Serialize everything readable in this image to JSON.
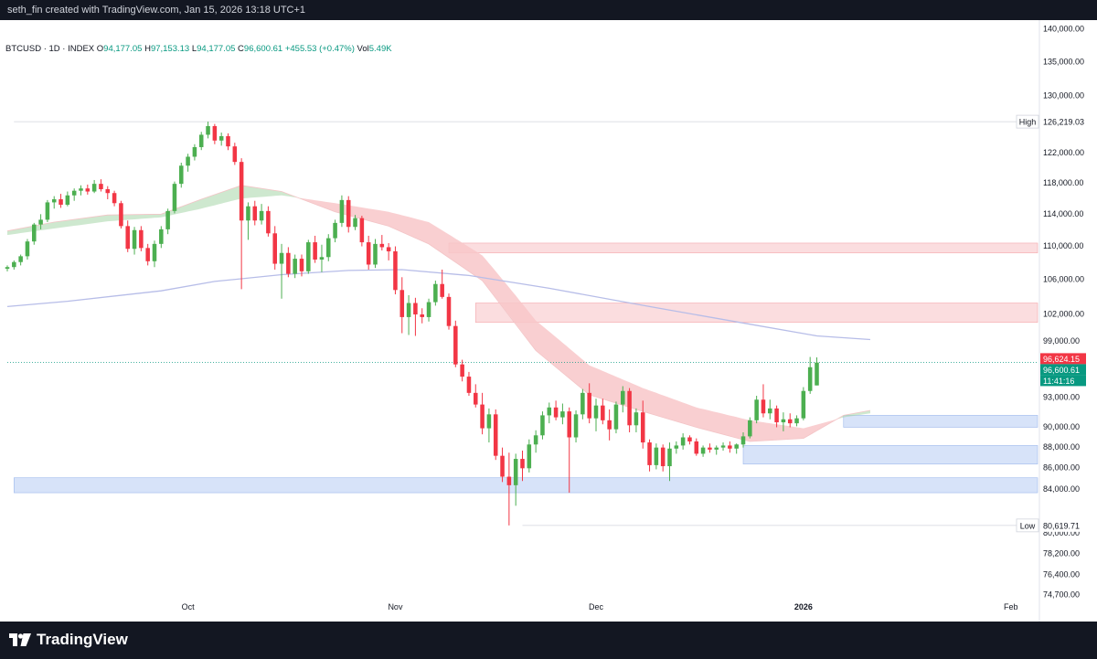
{
  "header": {
    "credit": "seth_fin created with TradingView.com, Jan 15, 2026 13:18 UTC+1"
  },
  "legend": {
    "symbol": "BTCUSD · 1D · INDEX",
    "o_label": "O",
    "o_value": "94,177.05",
    "h_label": "H",
    "h_value": "97,153.13",
    "l_label": "L",
    "l_value": "94,177.05",
    "c_label": "C",
    "c_value": "96,600.61",
    "change": "+455.53 (+0.47%)",
    "vol_label": "Vol",
    "vol_value": "5.49K"
  },
  "footer": {
    "brand": "TradingView"
  },
  "colors": {
    "up": "#26a69a",
    "up_candle": "#4caf50",
    "down": "#f23645",
    "zone_red": "#f8c7c9",
    "zone_blue": "#bcd0f5",
    "ma_line": "#b7bde8"
  },
  "chart_data": {
    "type": "candlestick",
    "symbol": "BTCUSD",
    "interval": "1D",
    "y_axis": {
      "scale": "log",
      "ticks": [
        "140,000.00",
        "135,000.00",
        "130,000.00",
        "126,000.00",
        "122,000.00",
        "118,000.00",
        "114,000.00",
        "110,000.00",
        "106,000.00",
        "102,000.00",
        "99,000.00",
        "93,000.00",
        "90,000.00",
        "88,000.00",
        "86,000.00",
        "84,000.00",
        "80,000.00",
        "78,200.00",
        "76,400.00",
        "74,700.00"
      ],
      "tick_values": [
        140000,
        135000,
        130000,
        126000,
        122000,
        118000,
        114000,
        110000,
        106000,
        102000,
        99000,
        93000,
        90000,
        88000,
        86000,
        84000,
        80000,
        78200,
        76400,
        74700
      ]
    },
    "x_axis": {
      "labels": [
        "Oct",
        "Nov",
        "Dec",
        "2026",
        "Feb"
      ],
      "label_days": [
        26,
        57,
        87,
        118,
        149
      ]
    },
    "high_marker": {
      "label": "High",
      "value": "126,219.03",
      "price": 126219.03,
      "start_day": 0
    },
    "low_marker": {
      "label": "Low",
      "value": "80,619.71",
      "price": 80619.71,
      "start_day": 76
    },
    "price_labels": [
      {
        "text": "96,624.15",
        "price": 96624.15,
        "color": "#f23645"
      },
      {
        "text": "96,600.61",
        "price": 96600.61,
        "color": "#089981"
      },
      {
        "text": "11:41:16",
        "price": 95350,
        "color": "#089981"
      }
    ],
    "last_price": 96600.61,
    "zones": [
      {
        "kind": "red",
        "top": 110300,
        "bottom": 109100,
        "start_day": 65
      },
      {
        "kind": "red",
        "top": 103200,
        "bottom": 101000,
        "start_day": 69
      },
      {
        "kind": "blue",
        "top": 91100,
        "bottom": 89900,
        "start_day": 124
      },
      {
        "kind": "blue",
        "top": 88100,
        "bottom": 86300,
        "start_day": 109
      },
      {
        "kind": "blue",
        "top": 85000,
        "bottom": 83600,
        "start_day": 0
      }
    ],
    "start_day": -1,
    "candles": [
      [
        107200,
        107600,
        106900,
        107400
      ],
      [
        107400,
        108200,
        107100,
        108000
      ],
      [
        108000,
        108900,
        107600,
        108700
      ],
      [
        108700,
        110800,
        108300,
        110500
      ],
      [
        110500,
        112800,
        110100,
        112600
      ],
      [
        112600,
        113900,
        112000,
        113200
      ],
      [
        113200,
        115700,
        112900,
        115400
      ],
      [
        115400,
        116200,
        114600,
        115800
      ],
      [
        115800,
        116500,
        114700,
        115100
      ],
      [
        115100,
        116800,
        114900,
        116300
      ],
      [
        116300,
        117200,
        115600,
        116900
      ],
      [
        116900,
        117600,
        116300,
        117200
      ],
      [
        117200,
        117700,
        116400,
        116800
      ],
      [
        116800,
        118300,
        116600,
        117800
      ],
      [
        117800,
        118400,
        116800,
        117100
      ],
      [
        117100,
        117500,
        115800,
        116600
      ],
      [
        116600,
        116900,
        114900,
        115300
      ],
      [
        115300,
        115600,
        112100,
        112400
      ],
      [
        112400,
        113100,
        109200,
        109600
      ],
      [
        109600,
        112300,
        108900,
        111900
      ],
      [
        111900,
        112400,
        109300,
        109700
      ],
      [
        109700,
        110200,
        107600,
        108100
      ],
      [
        108100,
        110600,
        107400,
        110200
      ],
      [
        110200,
        112400,
        109700,
        112000
      ],
      [
        112000,
        114600,
        111400,
        114300
      ],
      [
        114300,
        118100,
        114000,
        117800
      ],
      [
        117800,
        120600,
        117300,
        120200
      ],
      [
        120200,
        121800,
        119400,
        121400
      ],
      [
        121400,
        123100,
        120900,
        122700
      ],
      [
        122700,
        124800,
        122300,
        124400
      ],
      [
        124400,
        126219,
        123900,
        125600
      ],
      [
        125600,
        125900,
        123100,
        123600
      ],
      [
        123600,
        124700,
        122900,
        124200
      ],
      [
        124200,
        124600,
        122300,
        122800
      ],
      [
        122800,
        123300,
        120300,
        120700
      ],
      [
        120700,
        121200,
        104800,
        113100
      ],
      [
        113100,
        115400,
        110700,
        114900
      ],
      [
        114900,
        115600,
        112500,
        113100
      ],
      [
        113100,
        115200,
        112600,
        114300
      ],
      [
        114300,
        114900,
        111100,
        111500
      ],
      [
        111500,
        112400,
        107100,
        107800
      ],
      [
        107800,
        110200,
        103700,
        109100
      ],
      [
        109100,
        109800,
        106200,
        106600
      ],
      [
        106600,
        108900,
        106100,
        108400
      ],
      [
        108400,
        108900,
        106300,
        106900
      ],
      [
        106900,
        110700,
        106600,
        110400
      ],
      [
        110400,
        111200,
        107900,
        108300
      ],
      [
        108300,
        110100,
        106800,
        108600
      ],
      [
        108600,
        111400,
        108100,
        110900
      ],
      [
        110900,
        113200,
        110400,
        112800
      ],
      [
        112800,
        116300,
        112300,
        115700
      ],
      [
        115700,
        116200,
        111600,
        112300
      ],
      [
        112300,
        113800,
        111900,
        113400
      ],
      [
        113400,
        113700,
        109900,
        110400
      ],
      [
        110400,
        111200,
        107100,
        107700
      ],
      [
        107700,
        110800,
        107300,
        110200
      ],
      [
        110200,
        111300,
        109400,
        109800
      ],
      [
        109800,
        110300,
        108200,
        109300
      ],
      [
        109300,
        109900,
        104200,
        104700
      ],
      [
        104700,
        106200,
        99800,
        101600
      ],
      [
        101600,
        104100,
        99600,
        103200
      ],
      [
        103200,
        103800,
        99500,
        101900
      ],
      [
        101900,
        102600,
        100900,
        101600
      ],
      [
        101600,
        103700,
        101100,
        103300
      ],
      [
        103300,
        105800,
        102900,
        105400
      ],
      [
        105400,
        107100,
        103700,
        103900
      ],
      [
        103900,
        104300,
        100200,
        100600
      ],
      [
        100600,
        101200,
        96100,
        96400
      ],
      [
        96400,
        96900,
        94600,
        95100
      ],
      [
        95100,
        95600,
        93100,
        93400
      ],
      [
        93400,
        94300,
        91900,
        92200
      ],
      [
        92200,
        93400,
        89200,
        89800
      ],
      [
        89800,
        91800,
        88400,
        91200
      ],
      [
        91200,
        91700,
        86700,
        87100
      ],
      [
        87100,
        87900,
        84600,
        85100
      ],
      [
        85100,
        87400,
        80619,
        84300
      ],
      [
        84300,
        87300,
        82400,
        86800
      ],
      [
        86800,
        87600,
        84700,
        85900
      ],
      [
        85900,
        88700,
        85500,
        88200
      ],
      [
        88200,
        89600,
        87400,
        89100
      ],
      [
        89100,
        91500,
        88700,
        91100
      ],
      [
        91100,
        92400,
        90300,
        91900
      ],
      [
        91900,
        92600,
        90600,
        90900
      ],
      [
        90900,
        92300,
        90200,
        91500
      ],
      [
        91500,
        91900,
        83600,
        88900
      ],
      [
        88900,
        91600,
        88400,
        91200
      ],
      [
        91200,
        93800,
        90700,
        93400
      ],
      [
        93400,
        94400,
        90300,
        90800
      ],
      [
        90800,
        92800,
        89500,
        92100
      ],
      [
        92100,
        92800,
        90200,
        90600
      ],
      [
        90600,
        91700,
        88600,
        89700
      ],
      [
        89700,
        92500,
        89300,
        92200
      ],
      [
        92200,
        94100,
        91400,
        93600
      ],
      [
        93600,
        93900,
        89400,
        90100
      ],
      [
        90100,
        91800,
        89400,
        91400
      ],
      [
        91400,
        92600,
        87800,
        88400
      ],
      [
        88400,
        88700,
        85600,
        86200
      ],
      [
        86200,
        88300,
        85800,
        87900
      ],
      [
        87900,
        88200,
        85600,
        86100
      ],
      [
        86100,
        88400,
        84700,
        87800
      ],
      [
        87800,
        88500,
        87300,
        88100
      ],
      [
        88100,
        89300,
        87700,
        88900
      ],
      [
        88900,
        89100,
        88200,
        88500
      ],
      [
        88500,
        88800,
        87100,
        87300
      ],
      [
        87300,
        88100,
        87000,
        87900
      ],
      [
        87900,
        88300,
        87400,
        87700
      ],
      [
        87700,
        88100,
        87200,
        87900
      ],
      [
        87900,
        88400,
        87600,
        88100
      ],
      [
        88100,
        88500,
        87400,
        87800
      ],
      [
        87800,
        88300,
        87300,
        88200
      ],
      [
        88200,
        89400,
        87900,
        89000
      ],
      [
        89000,
        90900,
        88800,
        90600
      ],
      [
        90600,
        93100,
        90300,
        92700
      ],
      [
        92700,
        94300,
        90900,
        91300
      ],
      [
        91300,
        92700,
        90700,
        91800
      ],
      [
        91800,
        92100,
        89900,
        90400
      ],
      [
        90400,
        91400,
        89500,
        90700
      ],
      [
        90700,
        91300,
        89900,
        90300
      ],
      [
        90300,
        91100,
        90000,
        90800
      ],
      [
        90800,
        94000,
        90600,
        93600
      ],
      [
        93600,
        97200,
        93300,
        96100
      ],
      [
        94177.05,
        97153.13,
        94177.05,
        96600.61
      ]
    ],
    "ma200": [
      [
        -1,
        102800
      ],
      [
        8,
        103400
      ],
      [
        22,
        104600
      ],
      [
        30,
        105700
      ],
      [
        40,
        106500
      ],
      [
        50,
        107000
      ],
      [
        58,
        107100
      ],
      [
        68,
        106400
      ],
      [
        80,
        104900
      ],
      [
        95,
        102800
      ],
      [
        110,
        100800
      ],
      [
        120,
        99500
      ],
      [
        128,
        99100
      ]
    ],
    "ribbon": {
      "fast": [
        [
          -1,
          111800
        ],
        [
          6,
          112900
        ],
        [
          14,
          113800
        ],
        [
          22,
          113900
        ],
        [
          28,
          115800
        ],
        [
          34,
          117600
        ],
        [
          40,
          116800
        ],
        [
          48,
          114200
        ],
        [
          56,
          112400
        ],
        [
          62,
          110200
        ],
        [
          70,
          105800
        ],
        [
          78,
          97900
        ],
        [
          86,
          93200
        ],
        [
          94,
          91500
        ],
        [
          102,
          89900
        ],
        [
          110,
          88500
        ],
        [
          118,
          88800
        ],
        [
          124,
          91100
        ],
        [
          128,
          91600
        ]
      ],
      "slow": [
        [
          -1,
          111300
        ],
        [
          6,
          112100
        ],
        [
          14,
          113000
        ],
        [
          22,
          113500
        ],
        [
          28,
          114600
        ],
        [
          34,
          115900
        ],
        [
          40,
          116300
        ],
        [
          48,
          115300
        ],
        [
          56,
          114200
        ],
        [
          62,
          112900
        ],
        [
          70,
          108800
        ],
        [
          78,
          101200
        ],
        [
          86,
          96300
        ],
        [
          94,
          93900
        ],
        [
          102,
          91900
        ],
        [
          110,
          90600
        ],
        [
          118,
          89800
        ],
        [
          124,
          90900
        ],
        [
          128,
          91300
        ]
      ]
    }
  }
}
